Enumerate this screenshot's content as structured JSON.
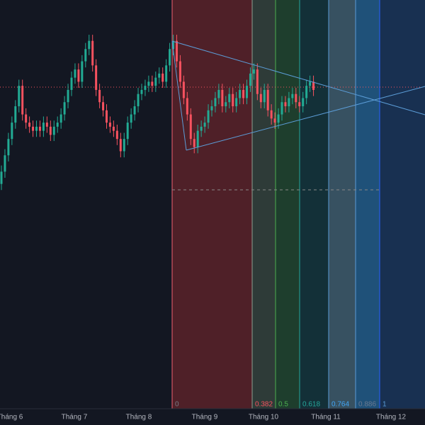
{
  "chart_data": {
    "type": "candlestick",
    "open": [
      55,
      58,
      62,
      66,
      70,
      74,
      79,
      72,
      70,
      69,
      68,
      69,
      68,
      70,
      69,
      67,
      69,
      70,
      72,
      75,
      78,
      81,
      83,
      80,
      85,
      88,
      90,
      84,
      78,
      75,
      73,
      70,
      69,
      68,
      66,
      63,
      66,
      70,
      72,
      74,
      77,
      78,
      79,
      80,
      79,
      81,
      82,
      80,
      84,
      88,
      90,
      85,
      80,
      76,
      72,
      66,
      64,
      68,
      69,
      70,
      73,
      74,
      76,
      78,
      74,
      75,
      77,
      74,
      76,
      78,
      76,
      79,
      82,
      83,
      77,
      75,
      78,
      73,
      71,
      70,
      72,
      75,
      74,
      76,
      77,
      75,
      74,
      76,
      79,
      80
    ],
    "high": [
      59.5,
      63.5,
      67.5,
      71.5,
      75.5,
      80.5,
      80.5,
      73.5,
      71.5,
      70.5,
      70.5,
      70.5,
      71.5,
      71.5,
      70.5,
      70.5,
      71.5,
      73.5,
      76.5,
      79.5,
      82.5,
      84.5,
      84.5,
      86.5,
      89.5,
      91.5,
      91.5,
      85.5,
      79.5,
      76.5,
      74.5,
      71.5,
      70.5,
      69.5,
      67.5,
      67.5,
      71.5,
      73.5,
      75.5,
      78.5,
      79.5,
      80.5,
      81.5,
      81.5,
      82.5,
      83.5,
      83.5,
      85.5,
      89.5,
      91.5,
      91.5,
      86.5,
      81.5,
      77.5,
      73.5,
      67.5,
      69.5,
      70.5,
      71.5,
      74.5,
      75.5,
      77.5,
      79.5,
      79.5,
      76.5,
      78.5,
      78.5,
      77.5,
      79.5,
      79.5,
      80.5,
      83.5,
      84.5,
      84.5,
      78.5,
      79.5,
      79.5,
      74.5,
      72.5,
      73.5,
      76.5,
      76.5,
      77.5,
      78.5,
      78.5,
      76.5,
      77.5,
      80.5,
      81.5,
      81.5
    ],
    "low": [
      53.5,
      56.5,
      60.5,
      64.5,
      68.5,
      72.5,
      70.5,
      68.5,
      67.5,
      66.5,
      66.5,
      66.5,
      66.5,
      67.5,
      65.5,
      65.5,
      67.5,
      68.5,
      70.5,
      73.5,
      76.5,
      79.5,
      78.5,
      78.5,
      83.5,
      86.5,
      82.5,
      76.5,
      73.5,
      71.5,
      68.5,
      67.5,
      66.5,
      64.5,
      61.5,
      61.5,
      64.5,
      68.5,
      70.5,
      72.5,
      75.5,
      76.5,
      77.5,
      77.5,
      77.5,
      79.5,
      78.5,
      78.5,
      82.5,
      86.5,
      83.5,
      78.5,
      74.5,
      70.5,
      64.5,
      62.5,
      62.5,
      66.5,
      67.5,
      68.5,
      71.5,
      72.5,
      74.5,
      72.5,
      72.5,
      73.5,
      72.5,
      72.5,
      74.5,
      74.5,
      74.5,
      77.5,
      80.5,
      75.5,
      73.5,
      73.5,
      71.5,
      69.5,
      68.5,
      68.5,
      70.5,
      72.5,
      72.5,
      74.5,
      73.5,
      72.5,
      72.5,
      74.5,
      77.5,
      76.5
    ],
    "close": [
      58,
      62,
      66,
      70,
      74,
      79,
      72,
      70,
      69,
      68,
      69,
      68,
      70,
      69,
      67,
      69,
      70,
      72,
      75,
      78,
      81,
      83,
      80,
      85,
      88,
      90,
      84,
      78,
      75,
      73,
      70,
      69,
      68,
      66,
      63,
      66,
      70,
      72,
      74,
      77,
      78,
      79,
      80,
      79,
      81,
      82,
      80,
      84,
      88,
      90,
      85,
      80,
      76,
      72,
      66,
      64,
      68,
      69,
      70,
      73,
      74,
      76,
      78,
      74,
      75,
      77,
      74,
      76,
      78,
      76,
      79,
      82,
      83,
      77,
      75,
      78,
      73,
      71,
      70,
      72,
      75,
      74,
      76,
      77,
      75,
      74,
      76,
      79,
      80,
      78
    ],
    "ylim": [
      0,
      100
    ],
    "up_color": "#22ab94",
    "down_color": "#f7525f",
    "x_axis_labels": [
      "Tháng 6",
      "Tháng 7",
      "Tháng 8",
      "Tháng 9",
      "Tháng 10",
      "Tháng 11",
      "Tháng 12"
    ],
    "fib_levels": [
      0,
      0.382,
      0.5,
      0.618,
      0.764,
      0.886,
      1
    ]
  }
}
